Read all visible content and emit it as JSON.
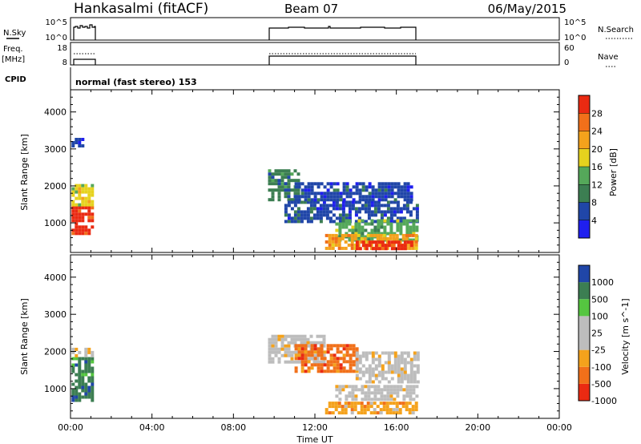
{
  "header": {
    "station": "Hankasalmi (fitACF)",
    "beam": "Beam 07",
    "date": "06/May/2015"
  },
  "rows": {
    "nsky_label": "N.Sky",
    "nsky_ticks": [
      "10^5",
      "10^0"
    ],
    "nsearch_label": "N.Search",
    "nsearch_ticks": [
      "10^5",
      "10^0"
    ],
    "freq_label": "Freq.",
    "freq_unit": "[MHz]",
    "freq_ticks": [
      "18",
      "8"
    ],
    "nave_label": "Nave",
    "nave_ticks": [
      "60",
      "0"
    ],
    "cpid_label": "CPID",
    "mode_text": "normal (fast stereo) 153"
  },
  "colors": {
    "power": [
      "#1f1fef",
      "#2046a8",
      "#3c7e52",
      "#55a85a",
      "#e6d21e",
      "#f4a21c",
      "#f1701a",
      "#ea2a12"
    ],
    "velocity": [
      "#ea2a12",
      "#f1701a",
      "#f4a21c",
      "#bdbdbd",
      "#bdbdbd",
      "#55c640",
      "#3c7e52",
      "#2046a8"
    ]
  },
  "chart_data": [
    {
      "type": "heatmap",
      "panel": "power",
      "ylabel": "Slant Range [km]",
      "xlabel": "",
      "yticks": [
        "1000",
        "2000",
        "3000",
        "4000"
      ],
      "ylim": [
        200,
        4600
      ],
      "xlim": [
        0,
        24
      ],
      "colorbar_label": "Power [dB]",
      "colorbar_ticks": [
        "4",
        "8",
        "12",
        "16",
        "20",
        "24",
        "28"
      ],
      "colorbar_range": [
        0,
        32
      ],
      "observed_intervals_ut": [
        [
          0.0,
          1.1
        ],
        [
          9.6,
          17.1
        ]
      ],
      "echo_regions": [
        {
          "t0": 0.05,
          "t1": 1.05,
          "r0": 700,
          "r1": 1450,
          "level": 7
        },
        {
          "t0": 0.05,
          "t1": 1.05,
          "r0": 1450,
          "r1": 2050,
          "level": 4
        },
        {
          "t0": 0.05,
          "t1": 0.55,
          "r0": 3100,
          "r1": 3300,
          "level": 1
        },
        {
          "t0": 9.7,
          "t1": 11.2,
          "r0": 1600,
          "r1": 2450,
          "level": 2
        },
        {
          "t0": 10.5,
          "t1": 17.0,
          "r0": 1000,
          "r1": 1600,
          "level": 1
        },
        {
          "t0": 11.0,
          "t1": 16.8,
          "r0": 1600,
          "r1": 2100,
          "level": 1
        },
        {
          "t0": 13.0,
          "t1": 17.0,
          "r0": 500,
          "r1": 1100,
          "level": 3
        },
        {
          "t0": 12.5,
          "t1": 17.0,
          "r0": 300,
          "r1": 700,
          "level": 5
        },
        {
          "t0": 14.0,
          "t1": 16.8,
          "r0": 300,
          "r1": 520,
          "level": 7
        }
      ]
    },
    {
      "type": "heatmap",
      "panel": "velocity",
      "ylabel": "Slant Range [km]",
      "xlabel": "Time UT",
      "xticks": [
        "00:00",
        "04:00",
        "08:00",
        "12:00",
        "16:00",
        "20:00",
        "00:00"
      ],
      "yticks": [
        "1000",
        "2000",
        "3000",
        "4000"
      ],
      "ylim": [
        200,
        4600
      ],
      "xlim": [
        0,
        24
      ],
      "colorbar_label": "Velocity [m s^-1]",
      "colorbar_ticks": [
        "1000",
        "500",
        "100",
        "25",
        "-25",
        "-100",
        "-500",
        "-1000"
      ],
      "echo_regions": [
        {
          "t0": 0.05,
          "t1": 1.05,
          "r0": 700,
          "r1": 1850,
          "level": 6
        },
        {
          "t0": 0.05,
          "t1": 1.05,
          "r0": 1850,
          "r1": 2100,
          "level": 3
        },
        {
          "t0": 9.7,
          "t1": 12.5,
          "r0": 1700,
          "r1": 2450,
          "level": 3
        },
        {
          "t0": 11.0,
          "t1": 14.0,
          "r0": 1500,
          "r1": 2200,
          "level": 1
        },
        {
          "t0": 14.0,
          "t1": 17.0,
          "r0": 1200,
          "r1": 2000,
          "level": 3
        },
        {
          "t0": 13.0,
          "t1": 17.0,
          "r0": 750,
          "r1": 1100,
          "level": 3
        },
        {
          "t0": 12.5,
          "t1": 17.0,
          "r0": 350,
          "r1": 650,
          "level": 2
        }
      ]
    }
  ]
}
